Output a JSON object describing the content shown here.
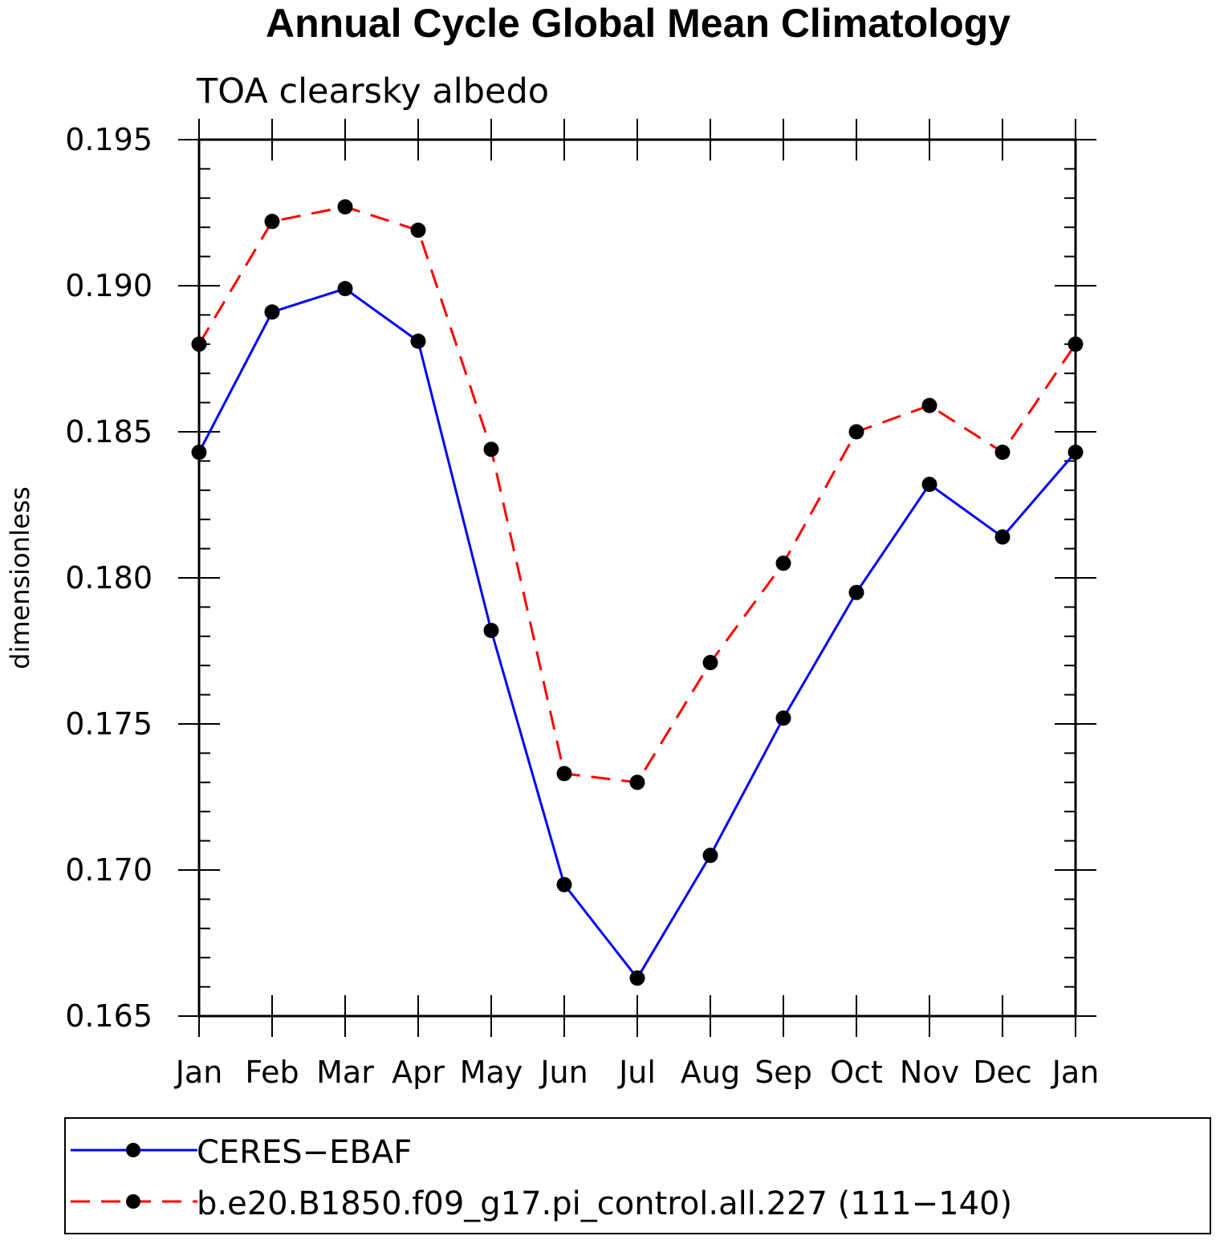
{
  "chart_data": {
    "type": "line",
    "title": "Annual Cycle Global Mean Climatology",
    "subtitle": "TOA clearsky albedo",
    "xlabel": "",
    "ylabel": "dimensionless",
    "categories": [
      "Jan",
      "Feb",
      "Mar",
      "Apr",
      "May",
      "Jun",
      "Jul",
      "Aug",
      "Sep",
      "Oct",
      "Nov",
      "Dec",
      "Jan"
    ],
    "ylim": [
      0.165,
      0.195
    ],
    "yticks": [
      "0.165",
      "0.170",
      "0.175",
      "0.180",
      "0.185",
      "0.190",
      "0.195"
    ],
    "yminor_step": 0.001,
    "grid": false,
    "legend_position": "bottom",
    "series": [
      {
        "name": "CERES−EBAF",
        "color": "#0000ff",
        "dash": "solid",
        "marker": "circle",
        "values": [
          0.1843,
          0.1891,
          0.1899,
          0.1881,
          0.1782,
          0.1695,
          0.1663,
          0.1705,
          0.1752,
          0.1795,
          0.1832,
          0.1814,
          0.1843
        ]
      },
      {
        "name": "b.e20.B1850.f09_g17.pi_control.all.227 (111−140)",
        "color": "#ff0000",
        "dash": "dashed",
        "marker": "circle",
        "values": [
          0.188,
          0.1922,
          0.1927,
          0.1919,
          0.1844,
          0.1733,
          0.173,
          0.1771,
          0.1805,
          0.185,
          0.1859,
          0.1843,
          0.188
        ]
      }
    ]
  }
}
